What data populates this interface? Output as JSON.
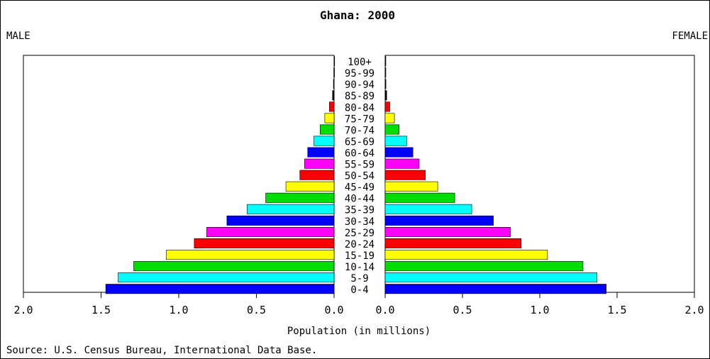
{
  "chart_data": {
    "type": "bar",
    "title": "Ghana: 2000",
    "left_label": "MALE",
    "right_label": "FEMALE",
    "xlabel": "Population (in millions)",
    "source": "Source: U.S. Census Bureau, International Data Base.",
    "xlim": [
      0,
      2.0
    ],
    "x_ticks": [
      "2.0",
      "1.5",
      "1.0",
      "0.5",
      "0.0"
    ],
    "x_ticks_right": [
      "0.0",
      "0.5",
      "1.0",
      "1.5",
      "2.0"
    ],
    "categories": [
      "100+",
      "95-99",
      "90-94",
      "85-89",
      "80-84",
      "75-79",
      "70-74",
      "65-69",
      "60-64",
      "55-59",
      "50-54",
      "45-49",
      "40-44",
      "35-39",
      "30-34",
      "25-29",
      "20-24",
      "15-19",
      "10-14",
      "5-9",
      "0-4"
    ],
    "colors": [
      "#000000",
      "#000000",
      "#000000",
      "#000000",
      "#ff0000",
      "#ffff00",
      "#00dd00",
      "#00ffff",
      "#0000ff",
      "#ff00ff",
      "#ff0000",
      "#ffff00",
      "#00dd00",
      "#00ffff",
      "#0000ff",
      "#ff00ff",
      "#ff0000",
      "#ffff00",
      "#00dd00",
      "#00ffff",
      "#0000ff"
    ],
    "series": [
      {
        "name": "MALE",
        "values": [
          0.001,
          0.002,
          0.004,
          0.01,
          0.03,
          0.06,
          0.09,
          0.13,
          0.17,
          0.19,
          0.22,
          0.31,
          0.44,
          0.56,
          0.69,
          0.82,
          0.9,
          1.08,
          1.29,
          1.39,
          1.47
        ]
      },
      {
        "name": "FEMALE",
        "values": [
          0.001,
          0.002,
          0.005,
          0.01,
          0.03,
          0.06,
          0.09,
          0.14,
          0.18,
          0.22,
          0.26,
          0.34,
          0.45,
          0.56,
          0.7,
          0.81,
          0.88,
          1.05,
          1.28,
          1.37,
          1.43
        ]
      }
    ]
  }
}
